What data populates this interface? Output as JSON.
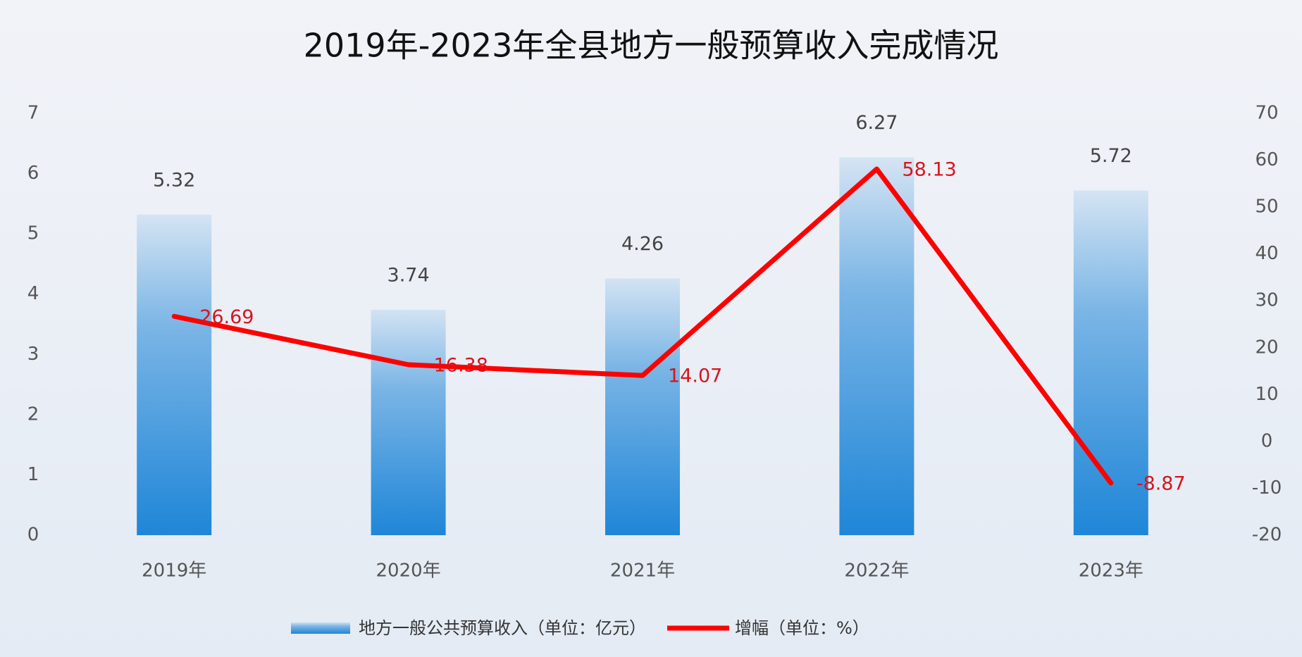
{
  "chart_data": {
    "type": "bar",
    "title": "2019年-2023年全县地方一般预算收入完成情况",
    "categories": [
      "2019年",
      "2020年",
      "2021年",
      "2022年",
      "2023年"
    ],
    "series": [
      {
        "name": "地方一般公共预算收入（单位：亿元）",
        "type": "bar",
        "color": "#1f86d8",
        "values": [
          5.32,
          3.74,
          4.26,
          6.27,
          5.72
        ]
      },
      {
        "name": "增幅（单位：%）",
        "type": "line",
        "axis": "y2",
        "color": "#ff0000",
        "values": [
          26.69,
          16.38,
          14.07,
          58.13,
          -8.87
        ]
      }
    ],
    "ylim": [
      0,
      7
    ],
    "yticks": [
      0,
      1,
      2,
      3,
      4,
      5,
      6,
      7
    ],
    "y2lim": [
      -20,
      70
    ],
    "y2ticks": [
      -20,
      -10,
      0,
      10,
      20,
      30,
      40,
      50,
      60,
      70
    ],
    "grid": false
  }
}
